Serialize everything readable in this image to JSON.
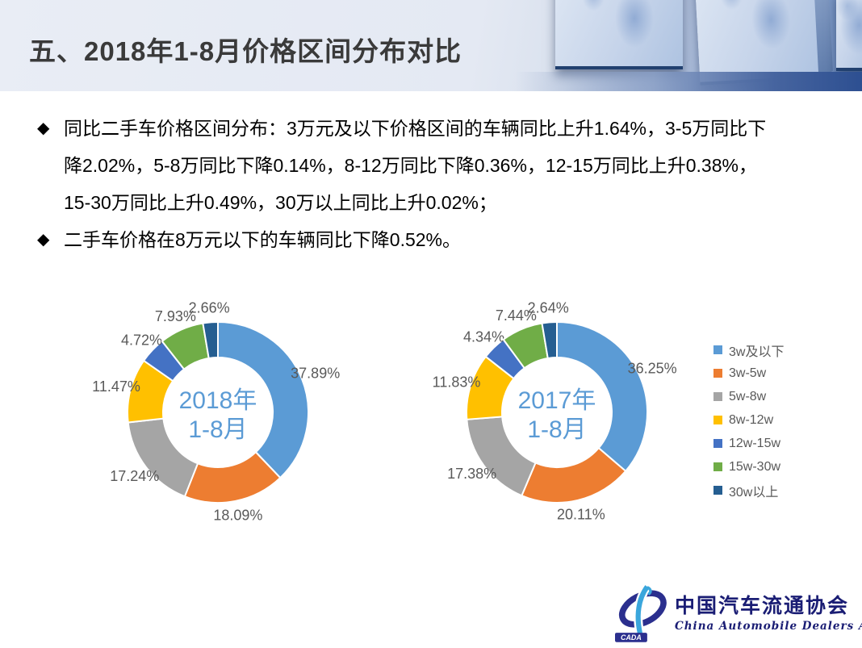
{
  "header": {
    "title": "五、2018年1-8月价格区间分布对比"
  },
  "bullets": [
    {
      "marker": "◆",
      "text": "同比二手车价格区间分布：3万元及以下价格区间的车辆同比上升1.64%，3-5万同比下降2.02%，5-8万同比下降0.14%，8-12万同比下降0.36%，12-15万同比上升0.38%，15-30万同比上升0.49%，30万以上同比上升0.02%；"
    },
    {
      "marker": "◆",
      "text": "二手车价格在8万元以下的车辆同比下降0.52%。"
    }
  ],
  "chart_data": [
    {
      "type": "pie",
      "subtype": "donut",
      "title": "2018年1-8月",
      "center_label": [
        "2018年",
        "1-8月"
      ],
      "categories": [
        "3w及以下",
        "3w-5w",
        "5w-8w",
        "8w-12w",
        "12w-15w",
        "15w-30w",
        "30w以上"
      ],
      "values": [
        37.89,
        18.09,
        17.24,
        11.47,
        4.72,
        7.93,
        2.66
      ],
      "labels": [
        "37.89%",
        "18.09%",
        "17.24%",
        "11.47%",
        "4.72%",
        "7.93%",
        "2.66%"
      ],
      "colors": [
        "#5B9BD5",
        "#ED7D31",
        "#A5A5A5",
        "#FFC000",
        "#4472C4",
        "#70AD47",
        "#255E91"
      ],
      "legend_position": "right"
    },
    {
      "type": "pie",
      "subtype": "donut",
      "title": "2017年1-8月",
      "center_label": [
        "2017年",
        "1-8月"
      ],
      "categories": [
        "3w及以下",
        "3w-5w",
        "5w-8w",
        "8w-12w",
        "12w-15w",
        "15w-30w",
        "30w以上"
      ],
      "values": [
        36.25,
        20.11,
        17.38,
        11.83,
        4.34,
        7.44,
        2.64
      ],
      "labels": [
        "36.25%",
        "20.11%",
        "17.38%",
        "11.83%",
        "4.34%",
        "7.44%",
        "2.64%"
      ],
      "colors": [
        "#5B9BD5",
        "#ED7D31",
        "#A5A5A5",
        "#FFC000",
        "#4472C4",
        "#70AD47",
        "#255E91"
      ],
      "legend_position": "right"
    }
  ],
  "legend": {
    "items": [
      {
        "label": "3w及以下",
        "color": "#5B9BD5"
      },
      {
        "label": "3w-5w",
        "color": "#ED7D31"
      },
      {
        "label": "5w-8w",
        "color": "#A5A5A5"
      },
      {
        "label": "8w-12w",
        "color": "#FFC000"
      },
      {
        "label": "12w-15w",
        "color": "#4472C4"
      },
      {
        "label": "15w-30w",
        "color": "#70AD47"
      },
      {
        "label": "30w以上",
        "color": "#255E91"
      }
    ]
  },
  "footer_logo": {
    "acronym": "CADA",
    "org_cn": "中国汽车流通协会",
    "org_en": "China Automobile Dealers Association"
  },
  "theme": {
    "center_label_color": "#5B9BD5",
    "slice_label_color": "#595959",
    "title_color": "#3A3A3A"
  }
}
